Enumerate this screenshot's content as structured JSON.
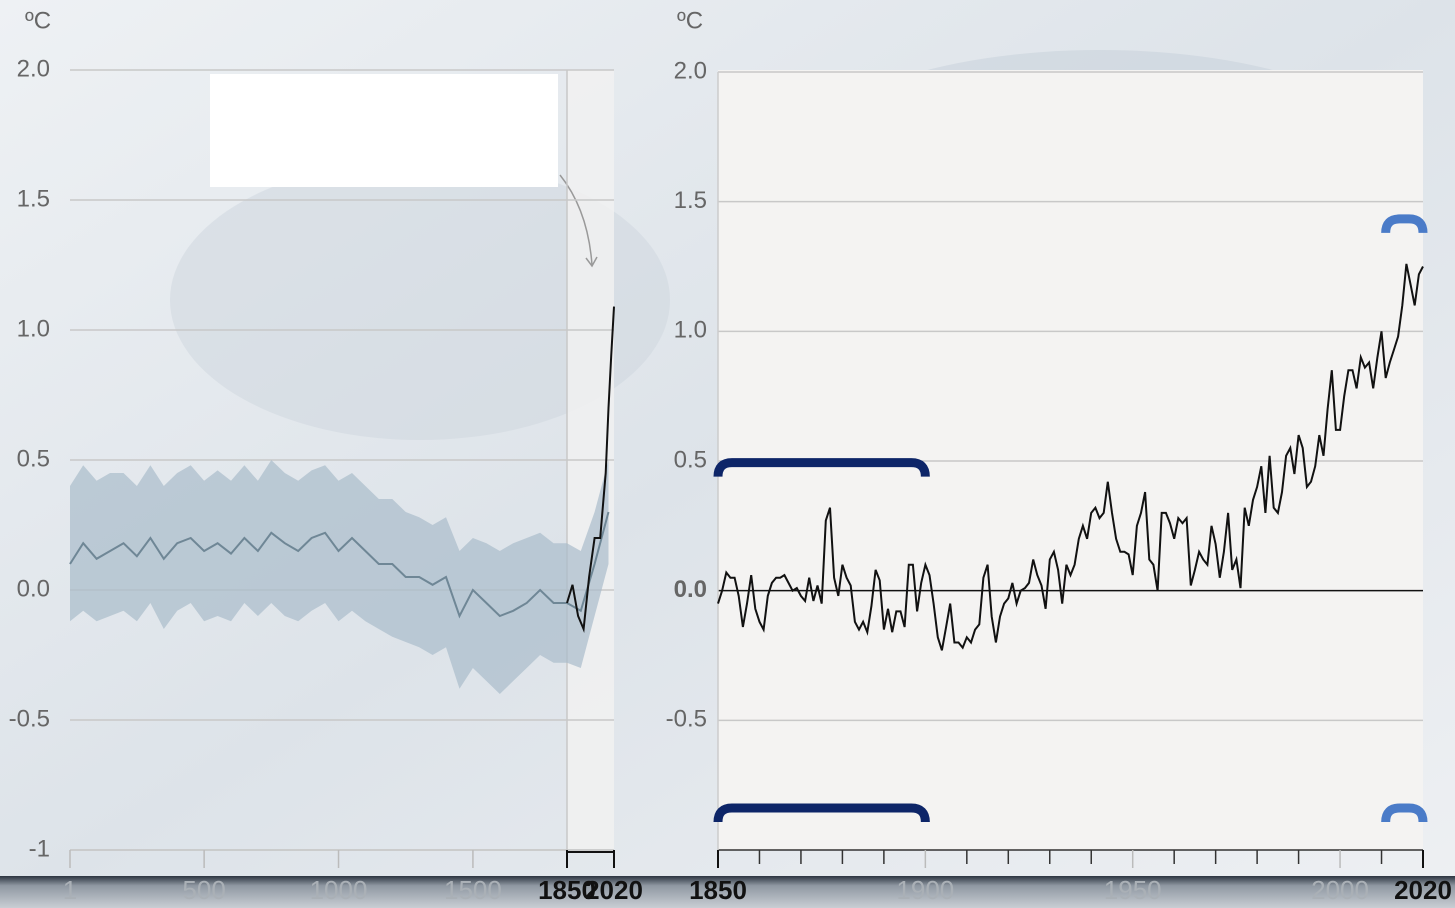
{
  "chart_data": [
    {
      "type": "line",
      "y_label": "ºC",
      "xlim": [
        1,
        2020
      ],
      "xbreak": 1850,
      "xticks": [
        1,
        500,
        1000,
        1500,
        1850,
        2020
      ],
      "bold_ticks": [
        1850,
        2020
      ],
      "ylim": [
        -1,
        2
      ],
      "yticks": [
        -1,
        -0.5,
        {
          "value": 0,
          "label": "0.0"
        },
        0.5,
        {
          "value": 1,
          "label": "1.0"
        },
        1.5,
        {
          "value": 2,
          "label": "2.0"
        }
      ],
      "grid": true,
      "series": [
        {
          "color": "#6f8796",
          "band_color": "#a9bccb",
          "x": [
            1,
            50,
            100,
            150,
            200,
            250,
            300,
            350,
            400,
            450,
            500,
            550,
            600,
            650,
            700,
            750,
            800,
            850,
            900,
            950,
            1000,
            1050,
            1100,
            1150,
            1200,
            1250,
            1300,
            1350,
            1400,
            1450,
            1500,
            1550,
            1600,
            1650,
            1700,
            1750,
            1800,
            1850,
            1900,
            1950,
            2000
          ],
          "values": [
            0.1,
            0.18,
            0.12,
            0.15,
            0.18,
            0.13,
            0.2,
            0.12,
            0.18,
            0.2,
            0.15,
            0.18,
            0.14,
            0.2,
            0.15,
            0.22,
            0.18,
            0.15,
            0.2,
            0.22,
            0.15,
            0.2,
            0.15,
            0.1,
            0.1,
            0.05,
            0.05,
            0.02,
            0.05,
            -0.1,
            0.0,
            -0.05,
            -0.1,
            -0.08,
            -0.05,
            0.0,
            -0.05,
            -0.05,
            -0.08,
            0.1,
            0.3
          ],
          "lower": [
            -0.12,
            -0.08,
            -0.12,
            -0.1,
            -0.08,
            -0.12,
            -0.05,
            -0.15,
            -0.08,
            -0.05,
            -0.12,
            -0.1,
            -0.12,
            -0.05,
            -0.1,
            -0.05,
            -0.1,
            -0.12,
            -0.08,
            -0.05,
            -0.12,
            -0.08,
            -0.12,
            -0.15,
            -0.18,
            -0.2,
            -0.22,
            -0.25,
            -0.22,
            -0.38,
            -0.3,
            -0.35,
            -0.4,
            -0.35,
            -0.3,
            -0.25,
            -0.28,
            -0.28,
            -0.3,
            -0.1,
            0.1
          ],
          "upper": [
            0.4,
            0.48,
            0.42,
            0.45,
            0.45,
            0.4,
            0.48,
            0.4,
            0.45,
            0.48,
            0.42,
            0.46,
            0.42,
            0.48,
            0.42,
            0.5,
            0.45,
            0.42,
            0.46,
            0.48,
            0.42,
            0.45,
            0.4,
            0.35,
            0.35,
            0.3,
            0.28,
            0.25,
            0.28,
            0.15,
            0.2,
            0.18,
            0.15,
            0.18,
            0.2,
            0.22,
            0.18,
            0.18,
            0.15,
            0.3,
            0.5
          ]
        },
        {
          "color": "#111111",
          "x": [
            1850,
            1870,
            1890,
            1910,
            1930,
            1950,
            1970,
            1990,
            2000,
            2010,
            2020
          ],
          "values": [
            -0.05,
            0.02,
            -0.1,
            -0.15,
            0.05,
            0.2,
            0.2,
            0.45,
            0.7,
            0.9,
            1.09
          ]
        }
      ]
    },
    {
      "type": "line",
      "y_label": "ºC",
      "xlim": [
        1850,
        2020
      ],
      "xticks": [
        1850,
        1900,
        1950,
        2000,
        2020
      ],
      "bold_ticks": [
        1850,
        2020
      ],
      "xminorticks": [
        1860,
        1870,
        1880,
        1890,
        1910,
        1920,
        1930,
        1940,
        1960,
        1970,
        1980,
        1990,
        2010
      ],
      "ylim": [
        -1,
        2
      ],
      "yticks": [
        -0.5,
        {
          "value": 0,
          "label": "0.0"
        },
        0.5,
        {
          "value": 1,
          "label": "1.0"
        },
        1.5,
        {
          "value": 2,
          "label": "2.0"
        }
      ],
      "grid": true,
      "periods": [
        {
          "start": 1850,
          "end": 1900,
          "color": "#0d2568"
        },
        {
          "start": 2011,
          "end": 2020,
          "color": "#4a7bc8"
        }
      ],
      "series": [
        {
          "color": "#111111",
          "x": [
            1850,
            1851,
            1852,
            1853,
            1854,
            1855,
            1856,
            1857,
            1858,
            1859,
            1860,
            1861,
            1862,
            1863,
            1864,
            1865,
            1866,
            1867,
            1868,
            1869,
            1870,
            1871,
            1872,
            1873,
            1874,
            1875,
            1876,
            1877,
            1878,
            1879,
            1880,
            1881,
            1882,
            1883,
            1884,
            1885,
            1886,
            1887,
            1888,
            1889,
            1890,
            1891,
            1892,
            1893,
            1894,
            1895,
            1896,
            1897,
            1898,
            1899,
            1900,
            1901,
            1902,
            1903,
            1904,
            1905,
            1906,
            1907,
            1908,
            1909,
            1910,
            1911,
            1912,
            1913,
            1914,
            1915,
            1916,
            1917,
            1918,
            1919,
            1920,
            1921,
            1922,
            1923,
            1924,
            1925,
            1926,
            1927,
            1928,
            1929,
            1930,
            1931,
            1932,
            1933,
            1934,
            1935,
            1936,
            1937,
            1938,
            1939,
            1940,
            1941,
            1942,
            1943,
            1944,
            1945,
            1946,
            1947,
            1948,
            1949,
            1950,
            1951,
            1952,
            1953,
            1954,
            1955,
            1956,
            1957,
            1958,
            1959,
            1960,
            1961,
            1962,
            1963,
            1964,
            1965,
            1966,
            1967,
            1968,
            1969,
            1970,
            1971,
            1972,
            1973,
            1974,
            1975,
            1976,
            1977,
            1978,
            1979,
            1980,
            1981,
            1982,
            1983,
            1984,
            1985,
            1986,
            1987,
            1988,
            1989,
            1990,
            1991,
            1992,
            1993,
            1994,
            1995,
            1996,
            1997,
            1998,
            1999,
            2000,
            2001,
            2002,
            2003,
            2004,
            2005,
            2006,
            2007,
            2008,
            2009,
            2010,
            2011,
            2012,
            2013,
            2014,
            2015,
            2016,
            2017,
            2018,
            2019,
            2020
          ],
          "values": [
            -0.05,
            0.0,
            0.07,
            0.05,
            0.05,
            -0.02,
            -0.14,
            -0.05,
            0.06,
            -0.07,
            -0.12,
            -0.15,
            -0.02,
            0.03,
            0.05,
            0.05,
            0.06,
            0.03,
            0.0,
            0.01,
            -0.02,
            -0.04,
            0.05,
            -0.04,
            0.02,
            -0.05,
            0.27,
            0.32,
            0.05,
            -0.02,
            0.1,
            0.05,
            0.02,
            -0.12,
            -0.15,
            -0.12,
            -0.16,
            -0.06,
            0.08,
            0.04,
            -0.15,
            -0.07,
            -0.16,
            -0.08,
            -0.08,
            -0.14,
            0.1,
            0.1,
            -0.08,
            0.03,
            0.1,
            0.06,
            -0.05,
            -0.18,
            -0.23,
            -0.14,
            -0.05,
            -0.2,
            -0.2,
            -0.22,
            -0.18,
            -0.2,
            -0.15,
            -0.13,
            0.05,
            0.1,
            -0.1,
            -0.2,
            -0.1,
            -0.05,
            -0.03,
            0.03,
            -0.05,
            0.0,
            0.01,
            0.03,
            0.12,
            0.06,
            0.02,
            -0.07,
            0.12,
            0.15,
            0.08,
            -0.05,
            0.1,
            0.06,
            0.1,
            0.2,
            0.25,
            0.2,
            0.3,
            0.32,
            0.28,
            0.3,
            0.42,
            0.3,
            0.2,
            0.15,
            0.15,
            0.14,
            0.06,
            0.25,
            0.3,
            0.38,
            0.12,
            0.1,
            0.0,
            0.3,
            0.3,
            0.26,
            0.2,
            0.28,
            0.26,
            0.28,
            0.02,
            0.08,
            0.15,
            0.12,
            0.1,
            0.25,
            0.18,
            0.05,
            0.15,
            0.3,
            0.08,
            0.12,
            0.01,
            0.32,
            0.25,
            0.35,
            0.4,
            0.48,
            0.3,
            0.52,
            0.32,
            0.3,
            0.38,
            0.52,
            0.55,
            0.45,
            0.6,
            0.55,
            0.4,
            0.42,
            0.48,
            0.6,
            0.52,
            0.7,
            0.85,
            0.62,
            0.62,
            0.75,
            0.85,
            0.85,
            0.78,
            0.9,
            0.86,
            0.88,
            0.78,
            0.9,
            1.0,
            0.82,
            0.88,
            0.93,
            0.98,
            1.1,
            1.26,
            1.18,
            1.1,
            1.22,
            1.25
          ]
        }
      ]
    }
  ]
}
